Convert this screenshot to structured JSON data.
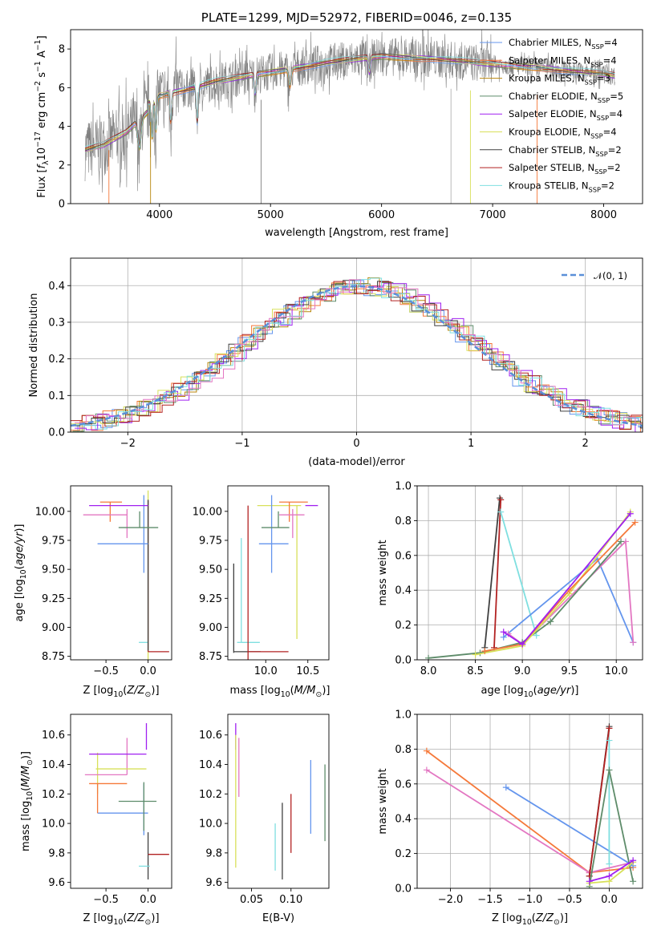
{
  "chart_data": [
    {
      "type": "line",
      "title": "PLATE=1299, MJD=52972, FIBERID=0046, z=0.135",
      "xlabel": "wavelength [Angstrom, rest frame]",
      "ylabel_parts": [
        "Flux [",
        "f",
        "λ",
        "10",
        "−17",
        " erg cm",
        "−2",
        " s",
        "−1",
        " A",
        "−1",
        "]"
      ],
      "xlim": [
        3200,
        8350
      ],
      "ylim": [
        0,
        9
      ],
      "xticks": [
        4000,
        5000,
        6000,
        7000,
        8000
      ],
      "yticks": [
        0,
        2,
        4,
        6,
        8
      ],
      "data_color": "#808080",
      "legend": [
        {
          "name": "Chabrier MILES, N",
          "sub": "SSP",
          "tail": "=4",
          "color": "#6495ED"
        },
        {
          "name": "Salpeter MILES, N",
          "sub": "SSP",
          "tail": "=4",
          "color": "#F5793A"
        },
        {
          "name": "Kroupa MILES, N",
          "sub": "SSP",
          "tail": "=3",
          "color": "#B8860B"
        },
        {
          "name": "Chabrier ELODIE, N",
          "sub": "SSP",
          "tail": "=5",
          "color": "#5E8C6A"
        },
        {
          "name": "Salpeter ELODIE, N",
          "sub": "SSP",
          "tail": "=4",
          "color": "#A020F0"
        },
        {
          "name": "Kroupa ELODIE, N",
          "sub": "SSP",
          "tail": "=4",
          "color": "#D8E05A"
        },
        {
          "name": "Chabrier STELIB, N",
          "sub": "SSP",
          "tail": "=2",
          "color": "#404040"
        },
        {
          "name": "Salpeter STELIB, N",
          "sub": "SSP",
          "tail": "=2",
          "color": "#B22222"
        },
        {
          "name": "Kroupa STELIB, N",
          "sub": "SSP",
          "tail": "=2",
          "color": "#7FDFE0"
        }
      ],
      "continuum": {
        "x": [
          3330,
          3500,
          3700,
          3900,
          4000,
          4300,
          4500,
          5000,
          5500,
          6000,
          6500,
          7000,
          7500,
          8000,
          8100
        ],
        "y": [
          3.0,
          3.3,
          4.0,
          5.2,
          5.6,
          6.0,
          6.3,
          6.8,
          7.3,
          7.6,
          7.5,
          7.2,
          7.0,
          6.7,
          6.6
        ]
      }
    },
    {
      "type": "step",
      "xlabel": "(data-model)/error",
      "ylabel": "Normed distribution",
      "xlim": [
        -2.5,
        2.5
      ],
      "ylim": [
        0,
        0.475
      ],
      "xticks": [
        -2,
        -1,
        0,
        1,
        2
      ],
      "yticks": [
        0.0,
        0.1,
        0.2,
        0.3,
        0.4
      ],
      "legend": "𝒩(0, 1)",
      "gaussian_color": "#5A8FD8",
      "bin_width": 0.1
    },
    {
      "type": "errorbar",
      "xlabel": "Z [log10(Z/Z⊙)]",
      "xlabel_parts": [
        "Z [log",
        "10",
        "(",
        "Z/Z",
        "⊙",
        ")]"
      ],
      "ylabel_parts": [
        "age  [log",
        "10",
        "(",
        "age/yr",
        ")]"
      ],
      "xlim": [
        -0.92,
        0.28
      ],
      "ylim": [
        8.72,
        10.22
      ],
      "xticks": [
        -0.5,
        0.0
      ],
      "yticks": [
        8.75,
        9.0,
        9.25,
        9.5,
        9.75,
        10.0
      ],
      "points": [
        {
          "x": -0.03,
          "xerr": [
            0.08,
            0.03
          ],
          "y": 8.87,
          "yerr": [
            0.0,
            0.0
          ],
          "color": "#7FDFE0"
        },
        {
          "x": 0.0,
          "xerr": [
            0.0,
            0.0
          ],
          "y": 9.0,
          "yerr": [
            0.4,
            1.18
          ],
          "color": "#D8E05A"
        },
        {
          "x": 0.0,
          "xerr": [
            0.0,
            0.25
          ],
          "y": 8.79,
          "yerr": [
            0.0,
            1.3
          ],
          "color": "#B22222"
        },
        {
          "x": 0.0,
          "xerr": [
            0.0,
            0.0
          ],
          "y": 9.5,
          "yerr": [
            0.7,
            0.6
          ],
          "color": "#404040"
        },
        {
          "x": -0.05,
          "xerr": [
            0.55,
            0.05
          ],
          "y": 9.72,
          "yerr": [
            0.25,
            0.42
          ],
          "color": "#6495ED"
        },
        {
          "x": -0.45,
          "xerr": [
            0.12,
            0.14
          ],
          "y": 10.08,
          "yerr": [
            0.17,
            0.0
          ],
          "color": "#F5793A"
        },
        {
          "x": -0.25,
          "xerr": [
            0.52,
            0.0
          ],
          "y": 9.97,
          "yerr": [
            0.2,
            0.05
          ],
          "color": "#E377C2"
        },
        {
          "x": -0.1,
          "xerr": [
            0.25,
            0.22
          ],
          "y": 9.86,
          "yerr": [
            0.0,
            0.14
          ],
          "color": "#5E8C6A"
        },
        {
          "x": -0.22,
          "xerr": [
            0.48,
            0.22
          ],
          "y": 10.05,
          "yerr": [
            0.0,
            0.0
          ],
          "color": "#A020F0"
        }
      ]
    },
    {
      "type": "errorbar",
      "xlabel_parts": [
        "mass [log",
        "10",
        "(",
        "M/M",
        "⊙",
        ")]"
      ],
      "xlim": [
        9.55,
        10.75
      ],
      "ylim": [
        8.72,
        10.22
      ],
      "xticks": [
        10.0,
        10.5
      ],
      "yticks": [
        8.75,
        9.0,
        9.25,
        9.5,
        9.75,
        10.0
      ],
      "points": [
        {
          "x": 9.62,
          "xerr": [
            0.0,
            0.0
          ],
          "y": 9.2,
          "yerr": [
            0.42,
            0.35
          ],
          "color": "#404040"
        },
        {
          "x": 9.62,
          "xerr": [
            0.0,
            0.32
          ],
          "y": 8.79,
          "yerr": [
            0.0,
            0.0
          ],
          "color": "#404040"
        },
        {
          "x": 9.71,
          "xerr": [
            0.05,
            0.0
          ],
          "y": 8.87,
          "yerr": [
            0.0,
            0.9
          ],
          "color": "#7FDFE0"
        },
        {
          "x": 9.71,
          "xerr": [
            0.0,
            0.22
          ],
          "y": 8.87,
          "yerr": [
            0.0,
            0.0
          ],
          "color": "#7FDFE0"
        },
        {
          "x": 9.79,
          "xerr": [
            0.0,
            0.0
          ],
          "y": 9.6,
          "yerr": [
            0.88,
            0.45
          ],
          "color": "#B22222"
        },
        {
          "x": 9.79,
          "xerr": [
            0.0,
            0.48
          ],
          "y": 8.79,
          "yerr": [
            0.0,
            0.0
          ],
          "color": "#B22222"
        },
        {
          "x": 10.27,
          "xerr": [
            0.37,
            0.15
          ],
          "y": 10.05,
          "yerr": [
            0.0,
            0.0
          ],
          "color": "#D8E05A"
        },
        {
          "x": 10.37,
          "xerr": [
            0.0,
            0.0
          ],
          "y": 9.5,
          "yerr": [
            0.6,
            0.55
          ],
          "color": "#D8E05A"
        },
        {
          "x": 10.07,
          "xerr": [
            0.15,
            0.2
          ],
          "y": 9.72,
          "yerr": [
            0.25,
            0.42
          ],
          "color": "#6495ED"
        },
        {
          "x": 10.15,
          "xerr": [
            0.2,
            0.13
          ],
          "y": 9.86,
          "yerr": [
            0.0,
            0.14
          ],
          "color": "#5E8C6A"
        },
        {
          "x": 10.28,
          "xerr": [
            0.12,
            0.22
          ],
          "y": 10.08,
          "yerr": [
            0.17,
            0.0
          ],
          "color": "#F5793A"
        },
        {
          "x": 10.32,
          "xerr": [
            0.16,
            0.14
          ],
          "y": 9.97,
          "yerr": [
            0.2,
            0.05
          ],
          "color": "#E377C2"
        },
        {
          "x": 10.47,
          "xerr": [
            0.0,
            0.15
          ],
          "y": 10.05,
          "yerr": [
            0.0,
            0.0
          ],
          "color": "#A020F0"
        }
      ]
    },
    {
      "type": "line",
      "xlabel_parts": [
        "age  [log",
        "10",
        "(",
        "age/yr",
        ")]"
      ],
      "ylabel": "mass weight",
      "xlim": [
        7.88,
        10.28
      ],
      "ylim": [
        0.0,
        1.0
      ],
      "xticks": [
        8.0,
        8.5,
        9.0,
        9.5,
        10.0
      ],
      "yticks": [
        0.0,
        0.2,
        0.4,
        0.6,
        0.8,
        1.0
      ],
      "series": [
        {
          "color": "#404040",
          "x": [
            8.6,
            8.76
          ],
          "y": [
            0.07,
            0.93
          ]
        },
        {
          "color": "#B22222",
          "x": [
            8.7,
            8.77
          ],
          "y": [
            0.07,
            0.92
          ]
        },
        {
          "color": "#7FDFE0",
          "x": [
            8.77,
            9.15
          ],
          "y": [
            0.85,
            0.14
          ]
        },
        {
          "color": "#6495ED",
          "x": [
            8.8,
            9.8,
            10.18
          ],
          "y": [
            0.13,
            0.58,
            0.1
          ]
        },
        {
          "color": "#E377C2",
          "x": [
            8.85,
            9.0,
            10.1,
            10.18
          ],
          "y": [
            0.15,
            0.09,
            0.68,
            0.1
          ]
        },
        {
          "color": "#5E8C6A",
          "x": [
            8.0,
            8.55,
            9.0,
            9.3,
            10.05
          ],
          "y": [
            0.01,
            0.04,
            0.1,
            0.22,
            0.68
          ]
        },
        {
          "color": "#D8E05A",
          "x": [
            8.5,
            9.0,
            9.5,
            10.15
          ],
          "y": [
            0.03,
            0.08,
            0.38,
            0.85
          ]
        },
        {
          "color": "#F5793A",
          "x": [
            8.6,
            9.0,
            9.5,
            10.2
          ],
          "y": [
            0.05,
            0.09,
            0.4,
            0.79
          ]
        },
        {
          "color": "#A020F0",
          "x": [
            8.8,
            9.0,
            10.15
          ],
          "y": [
            0.16,
            0.09,
            0.84
          ]
        }
      ]
    },
    {
      "type": "errorbar",
      "xlabel_parts": [
        "Z [log",
        "10",
        "(",
        "Z/Z",
        "⊙",
        ")]"
      ],
      "ylabel_parts": [
        "mass [log",
        "10",
        "(",
        "M/M",
        "⊙",
        ")]"
      ],
      "xlim": [
        -0.92,
        0.28
      ],
      "ylim": [
        9.56,
        10.74
      ],
      "xticks": [
        -0.5,
        0.0
      ],
      "yticks": [
        9.6,
        9.8,
        10.0,
        10.2,
        10.4,
        10.6
      ],
      "points": [
        {
          "x": 0.0,
          "xerr": [
            0.0,
            0.0
          ],
          "y": 9.62,
          "yerr": [
            0.0,
            0.32
          ],
          "color": "#404040"
        },
        {
          "x": 0.0,
          "xerr": [
            0.0,
            0.25
          ],
          "y": 9.79,
          "yerr": [
            0.0,
            0.0
          ],
          "color": "#B22222"
        },
        {
          "x": -0.03,
          "xerr": [
            0.08,
            0.05
          ],
          "y": 9.71,
          "yerr": [
            0.0,
            0.0
          ],
          "color": "#7FDFE0"
        },
        {
          "x": -0.02,
          "xerr": [
            0.0,
            0.0
          ],
          "y": 10.5,
          "yerr": [
            0.0,
            0.18
          ],
          "color": "#A020F0"
        },
        {
          "x": -0.6,
          "xerr": [
            0.0,
            0.0
          ],
          "y": 10.3,
          "yerr": [
            0.1,
            0.18
          ],
          "color": "#D8E05A"
        },
        {
          "x": -0.05,
          "xerr": [
            0.55,
            0.05
          ],
          "y": 10.07,
          "yerr": [
            0.15,
            0.2
          ],
          "color": "#6495ED"
        },
        {
          "x": -0.6,
          "xerr": [
            0.1,
            0.35
          ],
          "y": 10.27,
          "yerr": [
            0.2,
            0.0
          ],
          "color": "#F5793A"
        },
        {
          "x": -0.25,
          "xerr": [
            0.5,
            0.0
          ],
          "y": 10.33,
          "yerr": [
            0.0,
            0.25
          ],
          "color": "#E377C2"
        },
        {
          "x": -0.05,
          "xerr": [
            0.0,
            0.0
          ],
          "y": 10.15,
          "yerr": [
            0.2,
            0.13
          ],
          "color": "#5E8C6A"
        },
        {
          "x": -0.05,
          "xerr": [
            0.3,
            0.15
          ],
          "y": 10.15,
          "yerr": [
            0.0,
            0.0
          ],
          "color": "#5E8C6A"
        },
        {
          "x": -0.32,
          "xerr": [
            0.38,
            0.3
          ],
          "y": 10.47,
          "yerr": [
            0.0,
            0.0
          ],
          "color": "#A020F0"
        },
        {
          "x": -0.32,
          "xerr": [
            0.3,
            0.3
          ],
          "y": 10.37,
          "yerr": [
            0.0,
            0.0
          ],
          "color": "#D8E05A"
        }
      ]
    },
    {
      "type": "errorbar",
      "xlabel": "E(B-V)",
      "xlim": [
        0.02,
        0.148
      ],
      "ylim": [
        9.56,
        10.74
      ],
      "xticks": [
        0.05,
        0.1
      ],
      "yticks": [
        9.6,
        9.8,
        10.0,
        10.2,
        10.4,
        10.6
      ],
      "points": [
        {
          "x": 0.03,
          "xerr": [
            0.0,
            0.0
          ],
          "y": 10.5,
          "yerr": [
            0.0,
            0.18
          ],
          "color": "#A020F0"
        },
        {
          "x": 0.03,
          "xerr": [
            0.0,
            0.0
          ],
          "y": 10.0,
          "yerr": [
            0.3,
            0.6
          ],
          "color": "#D8E05A"
        },
        {
          "x": 0.034,
          "xerr": [
            0.0,
            0.0
          ],
          "y": 10.33,
          "yerr": [
            0.15,
            0.25
          ],
          "color": "#E377C2"
        },
        {
          "x": 0.08,
          "xerr": [
            0.0,
            0.0
          ],
          "y": 9.84,
          "yerr": [
            0.16,
            0.16
          ],
          "color": "#7FDFE0"
        },
        {
          "x": 0.089,
          "xerr": [
            0.0,
            0.0
          ],
          "y": 9.88,
          "yerr": [
            0.26,
            0.26
          ],
          "color": "#404040"
        },
        {
          "x": 0.1,
          "xerr": [
            0.0,
            0.0
          ],
          "y": 10.0,
          "yerr": [
            0.2,
            0.2
          ],
          "color": "#B22222"
        },
        {
          "x": 0.125,
          "xerr": [
            0.0,
            0.0
          ],
          "y": 10.18,
          "yerr": [
            0.25,
            0.25
          ],
          "color": "#6495ED"
        },
        {
          "x": 0.143,
          "xerr": [
            0.0,
            0.0
          ],
          "y": 10.14,
          "yerr": [
            0.26,
            0.26
          ],
          "color": "#5E8C6A"
        }
      ]
    },
    {
      "type": "line",
      "xlabel_parts": [
        "Z [log",
        "10",
        "(",
        "Z/Z",
        "⊙",
        ")]"
      ],
      "ylabel": "mass weight",
      "xlim": [
        -2.42,
        0.42
      ],
      "ylim": [
        0.0,
        1.0
      ],
      "xticks": [
        -2.0,
        -1.5,
        -1.0,
        -0.5,
        0.0
      ],
      "yticks": [
        0.0,
        0.2,
        0.4,
        0.6,
        0.8,
        1.0
      ],
      "series": [
        {
          "color": "#F5793A",
          "x": [
            -2.3,
            -0.25,
            0.3
          ],
          "y": [
            0.79,
            0.09,
            0.12
          ]
        },
        {
          "color": "#E377C2",
          "x": [
            -2.3,
            -0.25,
            0.3
          ],
          "y": [
            0.68,
            0.09,
            0.15
          ]
        },
        {
          "color": "#6495ED",
          "x": [
            -1.3,
            0.3
          ],
          "y": [
            0.58,
            0.13
          ]
        },
        {
          "color": "#404040",
          "x": [
            -0.25,
            0.0
          ],
          "y": [
            0.07,
            0.93
          ]
        },
        {
          "color": "#B22222",
          "x": [
            -0.25,
            0.0
          ],
          "y": [
            0.07,
            0.92
          ]
        },
        {
          "color": "#7FDFE0",
          "x": [
            0.0,
            0.0
          ],
          "y": [
            0.85,
            0.14
          ]
        },
        {
          "color": "#5E8C6A",
          "x": [
            -0.25,
            0.0,
            0.3
          ],
          "y": [
            0.01,
            0.68,
            0.04
          ]
        },
        {
          "color": "#D8E05A",
          "x": [
            -0.25,
            0.0,
            0.3
          ],
          "y": [
            0.03,
            0.04,
            0.15
          ]
        },
        {
          "color": "#A020F0",
          "x": [
            -0.25,
            0.0,
            0.3
          ],
          "y": [
            0.04,
            0.07,
            0.16
          ]
        }
      ]
    }
  ]
}
